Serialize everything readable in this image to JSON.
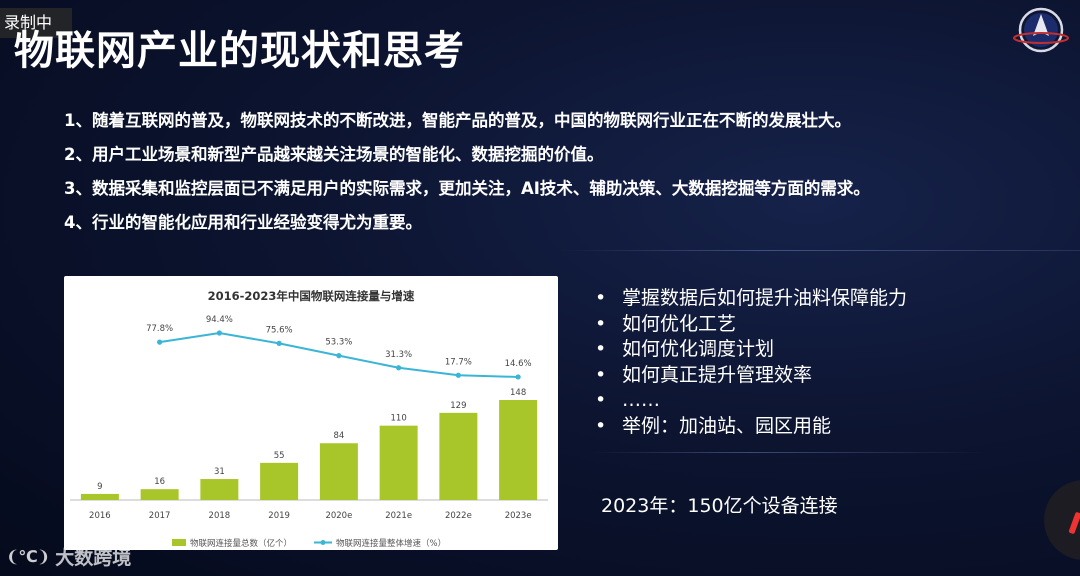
{
  "recording_badge": "录制中",
  "slide_title": "物联网产业的现状和思考",
  "bullets": [
    "1、随着互联网的普及，物联网技术的不断改进，智能产品的普及，中国的物联网行业正在不断的发展壮大。",
    "2、用户工业场景和新型产品越来越关注场景的智能化、数据挖掘的价值。",
    "3、数据采集和监控层面已不满足用户的实际需求，更加关注，AI技术、辅助决策、大数据挖掘等方面的需求。",
    "4、行业的智能化应用和行业经验变得尤为重要。"
  ],
  "right_list": [
    "掌握数据后如何提升油料保障能力",
    "如何优化工艺",
    "如何优化调度计划",
    "如何真正提升管理效率",
    "……",
    "举例：加油站、园区用能"
  ],
  "right_list_bullet": "•",
  "summary": "2023年：150亿个设备连接",
  "watermark_text": "大数跨境",
  "watermark_icon": "wm-logo-icon",
  "colors": {
    "bar": "#a8c62a",
    "line": "#3ab5d6"
  },
  "chart_data": {
    "type": "bar",
    "title": "2016-2023年中国物联网连接量与增速",
    "categories": [
      "2016",
      "2017",
      "2018",
      "2019",
      "2020e",
      "2021e",
      "2022e",
      "2023e"
    ],
    "series": [
      {
        "name": "物联网连接量总数（亿个）",
        "type": "bar",
        "values": [
          9,
          16,
          31,
          55,
          84,
          110,
          129,
          148
        ]
      },
      {
        "name": "物联网连接量整体增速（%）",
        "type": "line",
        "values": [
          null,
          77.8,
          94.4,
          75.6,
          53.3,
          31.3,
          17.7,
          14.6
        ],
        "labels": [
          "",
          "77.8%",
          "94.4%",
          "75.6%",
          "53.3%",
          "31.3%",
          "17.7%",
          "14.6%"
        ]
      }
    ],
    "bar_ylim": [
      0,
      148
    ],
    "line_ylim": [
      0,
      94.4
    ],
    "legend_position": "bottom",
    "grid": false
  }
}
